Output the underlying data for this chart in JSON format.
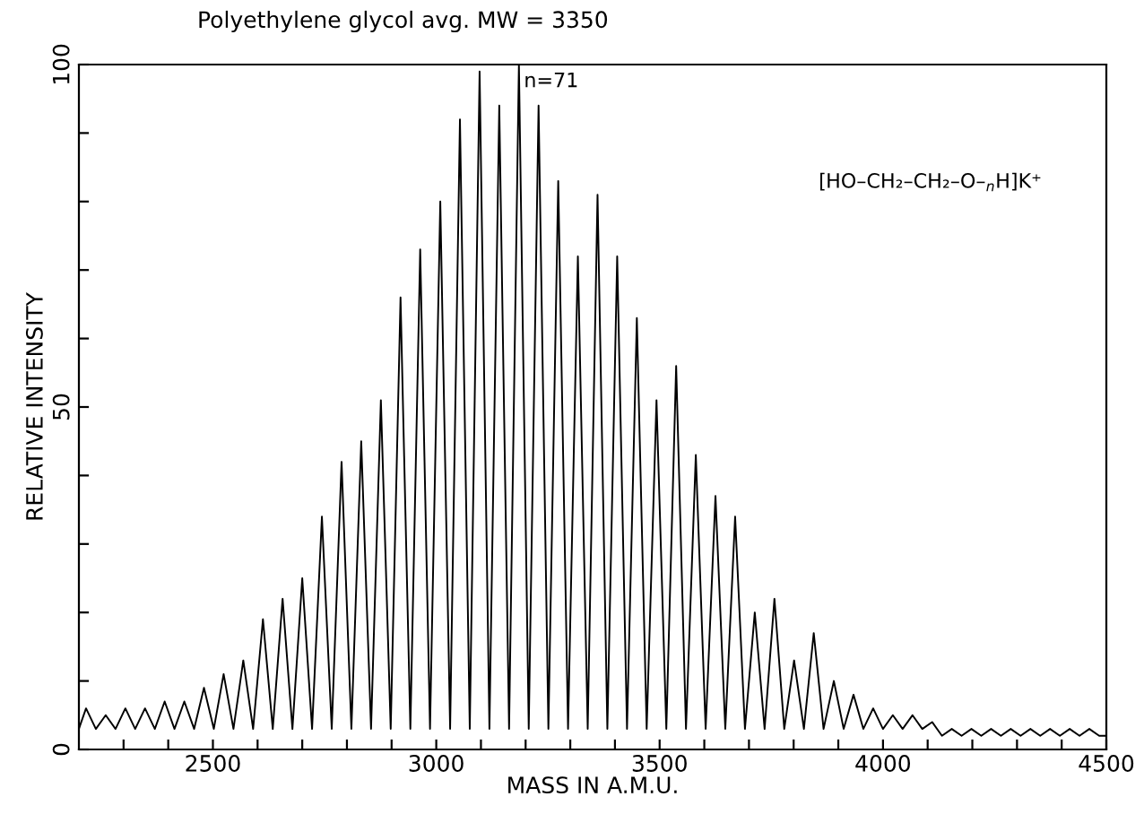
{
  "chart_data": {
    "type": "line",
    "title": "Polyethylene glycol avg. MW = 3350",
    "xlabel": "MASS IN A.M.U.",
    "ylabel": "RELATIVE INTENSITY",
    "x": [
      2200,
      2216,
      2238,
      2260,
      2282,
      2304,
      2326,
      2348,
      2370,
      2392,
      2414,
      2436,
      2458,
      2480,
      2502,
      2524,
      2546,
      2568,
      2590,
      2612,
      2634,
      2656,
      2678,
      2700,
      2722,
      2744,
      2766,
      2788,
      2810,
      2832,
      2854,
      2876,
      2898,
      2920,
      2942,
      2964,
      2986,
      3009,
      3031,
      3053,
      3075,
      3097,
      3119,
      3141,
      3163,
      3185,
      3207,
      3229,
      3251,
      3273,
      3295,
      3317,
      3339,
      3361,
      3383,
      3405,
      3427,
      3449,
      3471,
      3493,
      3515,
      3537,
      3559,
      3581,
      3603,
      3625,
      3647,
      3669,
      3691,
      3713,
      3735,
      3757,
      3779,
      3801,
      3823,
      3845,
      3867,
      3890,
      3912,
      3934,
      3956,
      3978,
      4000,
      4022,
      4044,
      4066,
      4088,
      4110,
      4132,
      4154,
      4176,
      4198,
      4220,
      4242,
      4264,
      4286,
      4308,
      4330,
      4352,
      4374,
      4396,
      4418,
      4440,
      4462,
      4484,
      4500
    ],
    "series": [
      {
        "color": "#000000",
        "values": [
          3,
          6,
          3,
          5,
          3,
          6,
          3,
          6,
          3,
          7,
          3,
          7,
          3,
          9,
          3,
          11,
          3,
          13,
          3,
          19,
          3,
          22,
          3,
          25,
          3,
          34,
          3,
          42,
          3,
          45,
          3,
          51,
          3,
          66,
          3,
          73,
          3,
          80,
          3,
          92,
          3,
          99,
          3,
          94,
          3,
          100,
          3,
          94,
          3,
          83,
          3,
          72,
          3,
          81,
          3,
          72,
          3,
          63,
          3,
          51,
          3,
          56,
          3,
          43,
          3,
          37,
          3,
          34,
          3,
          20,
          3,
          22,
          3,
          13,
          3,
          17,
          3,
          10,
          3,
          8,
          3,
          6,
          3,
          5,
          3,
          5,
          3,
          4,
          2,
          3,
          2,
          3,
          2,
          3,
          2,
          3,
          2,
          3,
          2,
          3,
          2,
          3,
          2,
          3,
          2,
          2
        ]
      }
    ],
    "xlim": [
      2200,
      4500
    ],
    "ylim": [
      0,
      100
    ],
    "xticks": [
      {
        "value": 2300,
        "label": null
      },
      {
        "value": 2400,
        "label": null
      },
      2500,
      {
        "value": 2600,
        "label": null
      },
      {
        "value": 2700,
        "label": null
      },
      {
        "value": 2800,
        "label": null
      },
      {
        "value": 2900,
        "label": null
      },
      3000,
      {
        "value": 3100,
        "label": null
      },
      {
        "value": 3200,
        "label": null
      },
      {
        "value": 3300,
        "label": null
      },
      {
        "value": 3400,
        "label": null
      },
      3500,
      {
        "value": 3600,
        "label": null
      },
      {
        "value": 3700,
        "label": null
      },
      {
        "value": 3800,
        "label": null
      },
      {
        "value": 3900,
        "label": null
      },
      4000,
      {
        "value": 4100,
        "label": null
      },
      {
        "value": 4200,
        "label": null
      },
      {
        "value": 4300,
        "label": null
      },
      {
        "value": 4400,
        "label": null
      },
      4500
    ],
    "yticks": [
      0,
      {
        "value": 10,
        "label": null
      },
      {
        "value": 20,
        "label": null
      },
      {
        "value": 30,
        "label": null
      },
      {
        "value": 40,
        "label": null
      },
      50,
      {
        "value": 60,
        "label": null
      },
      {
        "value": 70,
        "label": null
      },
      {
        "value": 80,
        "label": null
      },
      {
        "value": 90,
        "label": null
      },
      100
    ],
    "annotations": [
      {
        "text": "n=71",
        "x": 3185,
        "y": 100
      },
      "[HO–CH₂–CH₂–O–$_{n}$H]K⁺"
    ],
    "grid": false,
    "legend": false,
    "marker": "none",
    "line_style": "solid"
  }
}
